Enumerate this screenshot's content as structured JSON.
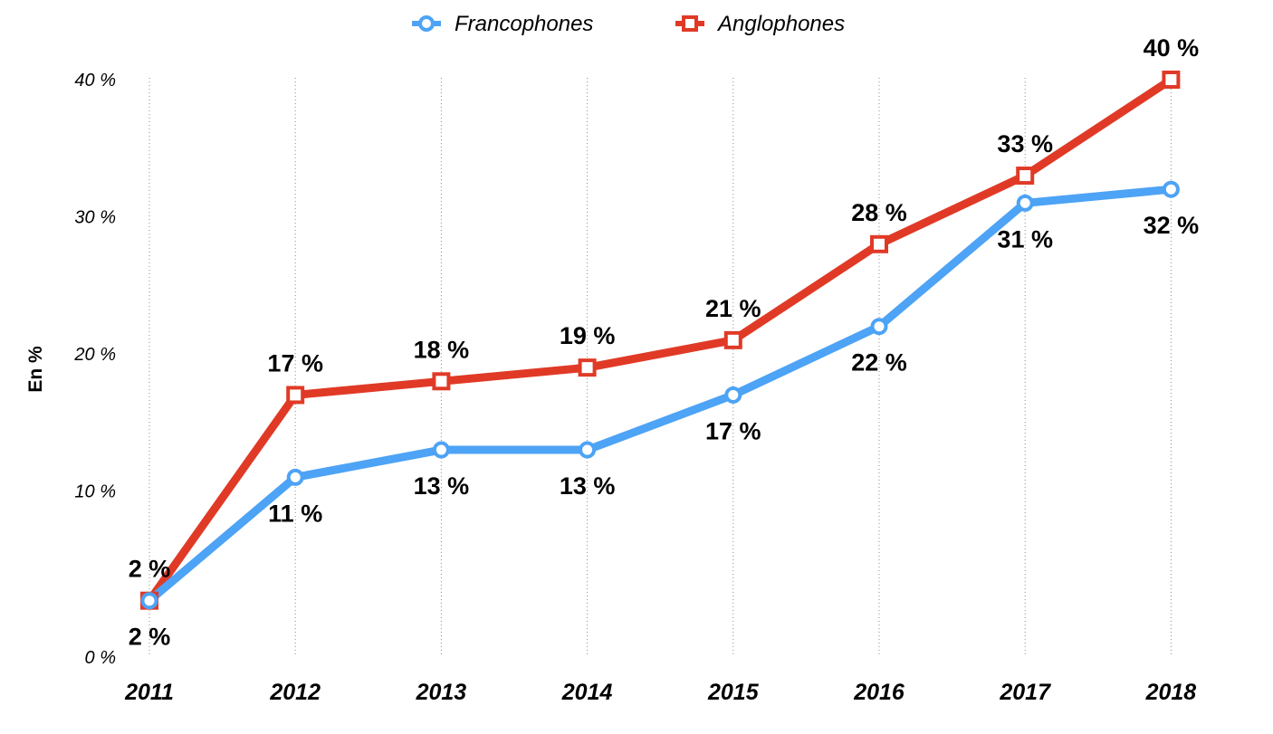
{
  "chart_data": {
    "type": "line",
    "title": "",
    "xlabel": "",
    "ylabel": "En %",
    "categories": [
      "2011",
      "2012",
      "2013",
      "2014",
      "2015",
      "2016",
      "2017",
      "2018"
    ],
    "y_ticks": [
      "0 %",
      "10 %",
      "20 %",
      "30 %",
      "40 %"
    ],
    "ylim": [
      0,
      40
    ],
    "grid": "vertical dotted lines at each category",
    "legend_position": "top-center",
    "series": [
      {
        "name": "Francophones",
        "color": "#4da3f5",
        "marker": "circle",
        "values": [
          2,
          11,
          13,
          13,
          17,
          22,
          31,
          32
        ],
        "labels": [
          "2 %",
          "11 %",
          "13 %",
          "13 %",
          "17 %",
          "22 %",
          "31 %",
          "32 %"
        ],
        "label_position": "below"
      },
      {
        "name": "Anglophones",
        "color": "#e03a27",
        "marker": "square",
        "values": [
          2,
          17,
          18,
          19,
          21,
          28,
          33,
          40
        ],
        "labels": [
          "2 %",
          "17 %",
          "18 %",
          "19 %",
          "21 %",
          "28 %",
          "33 %",
          "40 %"
        ],
        "label_position": "above"
      }
    ]
  }
}
